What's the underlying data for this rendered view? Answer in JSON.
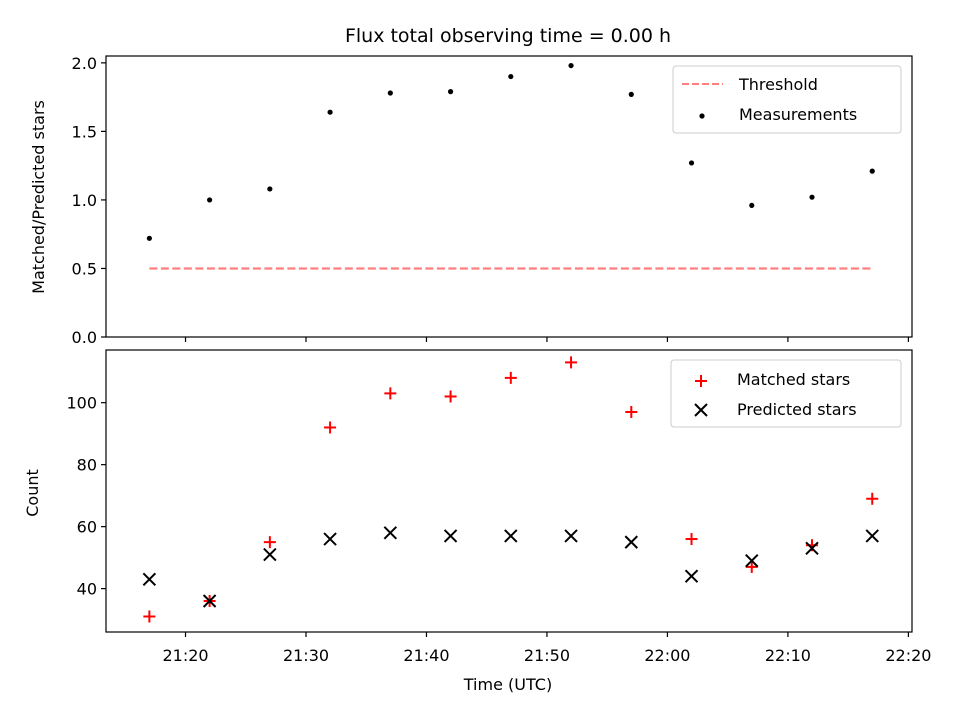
{
  "chart_data": [
    {
      "type": "scatter",
      "title": "Flux total observing time = 0.00 h",
      "xlabel": "",
      "ylabel": "Matched/Predicted stars",
      "ylim": [
        0,
        2.05
      ],
      "yticks": [
        "0.0",
        "0.5",
        "1.0",
        "1.5",
        "2.0"
      ],
      "ytick_values": [
        0,
        0.5,
        1.0,
        1.5,
        2.0
      ],
      "legend_position": "top-right",
      "grid": false,
      "series": [
        {
          "name": "Threshold",
          "kind": "dashed-line",
          "color": "#ff7f7f",
          "x": [
            "21:17",
            "22:17"
          ],
          "values": [
            0.5,
            0.5
          ]
        },
        {
          "name": "Measurements",
          "kind": "dot",
          "color": "#000000",
          "x": [
            "21:17",
            "21:22",
            "21:27",
            "21:32",
            "21:37",
            "21:42",
            "21:47",
            "21:52",
            "21:57",
            "22:02",
            "22:07",
            "22:12",
            "22:17"
          ],
          "values": [
            0.72,
            1.0,
            1.08,
            1.64,
            1.78,
            1.79,
            1.9,
            1.98,
            1.77,
            1.27,
            0.96,
            1.02,
            1.21
          ]
        }
      ]
    },
    {
      "type": "scatter",
      "title": "",
      "xlabel": "Time (UTC)",
      "ylabel": "Count",
      "ylim": [
        26,
        117
      ],
      "yticks": [
        "40",
        "60",
        "80",
        "100"
      ],
      "ytick_values": [
        40,
        60,
        80,
        100
      ],
      "xticks": [
        "21:20",
        "21:30",
        "21:40",
        "21:50",
        "22:00",
        "22:10",
        "22:20"
      ],
      "legend_position": "top-right",
      "grid": false,
      "series": [
        {
          "name": "Matched stars",
          "kind": "plus",
          "color": "#ff0000",
          "x": [
            "21:17",
            "21:22",
            "21:27",
            "21:32",
            "21:37",
            "21:42",
            "21:47",
            "21:52",
            "21:57",
            "22:02",
            "22:07",
            "22:12",
            "22:17"
          ],
          "values": [
            31,
            36,
            55,
            92,
            103,
            102,
            108,
            113,
            97,
            56,
            47,
            54,
            69
          ]
        },
        {
          "name": "Predicted stars",
          "kind": "x",
          "color": "#000000",
          "x": [
            "21:17",
            "21:22",
            "21:27",
            "21:32",
            "21:37",
            "21:42",
            "21:47",
            "21:52",
            "21:57",
            "22:02",
            "22:07",
            "22:12",
            "22:17"
          ],
          "values": [
            43,
            36,
            51,
            56,
            58,
            57,
            57,
            57,
            55,
            44,
            49,
            53,
            57
          ]
        }
      ]
    }
  ],
  "xaxis": {
    "range": [
      "21:14",
      "22:20"
    ],
    "ticks": [
      "21:20",
      "21:30",
      "21:40",
      "21:50",
      "22:00",
      "22:10",
      "22:20"
    ]
  }
}
